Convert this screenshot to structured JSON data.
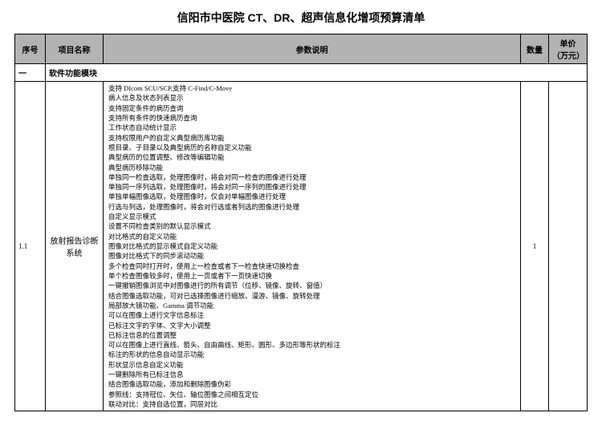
{
  "title": "信阳市中医院 CT、DR、超声信息化增项预算清单",
  "headers": {
    "seq": "序号",
    "name": "项目名称",
    "param": "参数说明",
    "qty": "数量",
    "price": "单价（万元）"
  },
  "section": {
    "seq": "一",
    "label": "软件功能模块"
  },
  "row1": {
    "seq": "1.1",
    "name": "放射报告诊断系统",
    "qty": "1",
    "price": "",
    "params": [
      "支持 DIcom SCU/SCP,支持 C-Find/C-Move",
      "病人信息及状态列表显示",
      "支持固定条件的病历查询",
      "支持所有条件的快速病历查询",
      "工作状态自动统计显示",
      "支持权限用户的自定义典型病历库功能",
      "根目录、子目录以及典型病历的名称自定义功能",
      "典型病历的位置调整、修改等编辑功能",
      "典型病历移除功能",
      "单独同一检查选取，处理图像时，将会对同一检查的图像进行处理",
      "单独同一序列选取，处理图像时，将会对同一序列的图像进行处理",
      "单独单幅图像选取，处理图像时，仅会对单幅图像进行处理",
      "行选与列选，处理图像时，将会对行选或者列选的图像进行处理",
      "自定义显示模式",
      "设置不同检查类别的默认显示模式",
      "对比格式的自定义功能",
      "图像对比格式的显示模式自定义功能",
      "图像对比格式下的同步滚动功能",
      "多个检查同时打开时，使用上一检查或者下一检查快速切换检查",
      "单个检查图像较多时，使用上一页或者下一页快速切换",
      "一键撤销图像浏览中对图像进行的所有调节（位移、镜像、旋转、窗值）",
      "结合图像选取功能，可对已选择图像进行缩放、漫游、镜像、旋转处理",
      "局部放大镜功能、Gamma 调节功能",
      "可以在图像上进行文字信息标注",
      "已标注文字的字体、文字大小调整",
      "已标注信息的位置调整",
      "可以在图像上进行直线、箭头、自由曲线、矩形、圆形、多边形等形状的标注",
      "标注的形状的信息自动显示功能",
      "形状显示信息自定义功能",
      "一键删除所有已标注信息",
      "结合图像选取功能，添加和删除图像伪彩",
      "参照线：支持冠位、矢位、轴位图像之间相互定位",
      "联动对比：支持自选位置，同层对比"
    ]
  }
}
